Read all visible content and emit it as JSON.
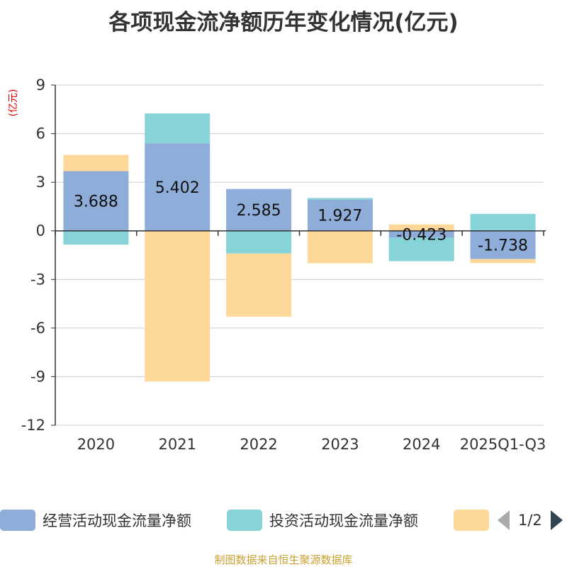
{
  "title": "各项现金流净额历年变化情况(亿元)",
  "source": "制图数据来自恒生聚源数据库",
  "legend_page": "1/2",
  "chart_data": {
    "type": "bar",
    "stacked": true,
    "title": "各项现金流净额历年变化情况(亿元)",
    "ylabel": "(亿元)",
    "xlabel": "",
    "ylim": [
      -12,
      9
    ],
    "yticks": [
      9,
      6,
      3,
      0,
      -3,
      -6,
      -9,
      -12
    ],
    "grid": true,
    "legend_position": "bottom",
    "categories": [
      "2020",
      "2021",
      "2022",
      "2023",
      "2024",
      "2025Q1-Q3"
    ],
    "series": [
      {
        "name": "经营活动现金流量净额",
        "color": "#8eadd9",
        "values": [
          3.688,
          5.402,
          2.585,
          1.927,
          -0.423,
          -1.738
        ],
        "labels": [
          "3.688",
          "5.402",
          "2.585",
          "1.927",
          "-0.423",
          "-1.738"
        ]
      },
      {
        "name": "投资活动现金流量净额",
        "color": "#86d4d8",
        "values": [
          -0.85,
          1.85,
          -1.4,
          0.1,
          -1.45,
          1.05
        ]
      },
      {
        "name": "",
        "color": "#fed899",
        "values": [
          1.0,
          -9.3,
          -3.9,
          -2.0,
          0.4,
          -0.25
        ]
      }
    ]
  }
}
